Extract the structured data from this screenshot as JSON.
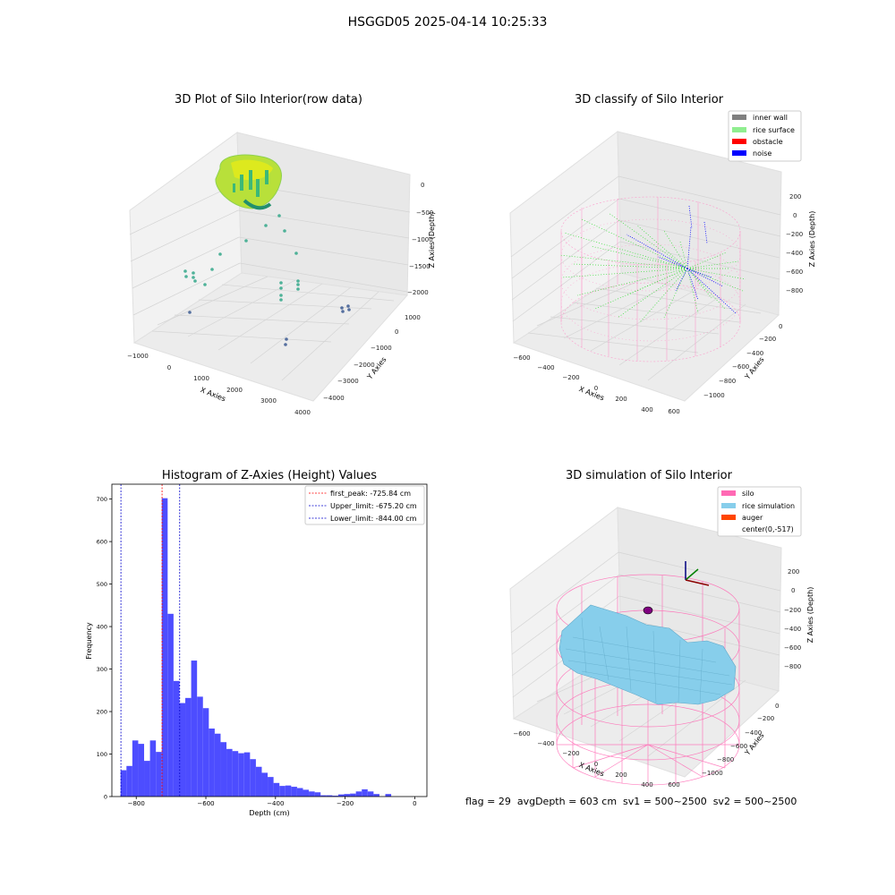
{
  "suptitle": "HSGGD05 2025-04-14 10:25:33",
  "panels": {
    "raw": {
      "title": "3D Plot of Silo Interior(row data)",
      "xlabel": "X Axies",
      "ylabel": "Y Axies",
      "zlabel": "Z Axies (Depth)",
      "xticks": [
        "−1000",
        "0",
        "1000",
        "2000",
        "3000",
        "4000"
      ],
      "yticks": [
        "1000",
        "0",
        "−1000",
        "−2000",
        "−3000",
        "−4000"
      ],
      "zticks": [
        "0",
        "−500",
        "−1000",
        "−1500",
        "−2000"
      ]
    },
    "classify": {
      "title": "3D classify of Silo Interior",
      "xlabel": "X Axies",
      "ylabel": "Y Axies",
      "zlabel": "Z Axies (Depth)",
      "xticks": [
        "−600",
        "−400",
        "−200",
        "0",
        "200",
        "400",
        "600"
      ],
      "yticks": [
        "0",
        "−200",
        "−400",
        "−600",
        "−800",
        "−1000"
      ],
      "zticks": [
        "200",
        "0",
        "−200",
        "−400",
        "−600",
        "−800"
      ],
      "legend": [
        {
          "label": "inner wall",
          "color": "#808080"
        },
        {
          "label": "rice surface",
          "color": "#90ee90"
        },
        {
          "label": "obstacle",
          "color": "#ff0000"
        },
        {
          "label": "noise",
          "color": "#0000ff"
        }
      ]
    },
    "simulation": {
      "title": "3D simulation of Silo Interior",
      "xlabel": "X Axies",
      "ylabel": "Y Axies",
      "zlabel": "Z Axies (Depth)",
      "xticks": [
        "−600",
        "−400",
        "−200",
        "0",
        "200",
        "400",
        "600"
      ],
      "yticks": [
        "0",
        "−200",
        "−400",
        "−600",
        "−800",
        "−1000"
      ],
      "zticks": [
        "200",
        "0",
        "−200",
        "−400",
        "−600",
        "−800"
      ],
      "legend": [
        {
          "label": "silo",
          "color": "#ff69b4"
        },
        {
          "label": "rice simulation",
          "color": "#87ceeb"
        },
        {
          "label": "auger",
          "color": "#ff4500"
        },
        {
          "label": "center(0,-517)",
          "color": ""
        }
      ]
    }
  },
  "chart_data": {
    "type": "bar",
    "title": "Histogram of Z-Axies (Height) Values",
    "xlabel": "Depth (cm)",
    "ylabel": "Frequency",
    "xlim": [
      -870,
      35
    ],
    "ylim": [
      0,
      735
    ],
    "xticks": [
      -800,
      -600,
      -400,
      -200,
      0
    ],
    "xtick_labels": [
      "−800",
      "−600",
      "−400",
      "−200",
      "0"
    ],
    "yticks": [
      0,
      100,
      200,
      300,
      400,
      500,
      600,
      700
    ],
    "bin_start": -845,
    "bin_width": 16.9,
    "values": [
      62,
      72,
      132,
      124,
      84,
      132,
      105,
      702,
      430,
      272,
      220,
      232,
      320,
      235,
      208,
      160,
      148,
      128,
      112,
      107,
      102,
      104,
      88,
      70,
      56,
      46,
      32,
      25,
      26,
      23,
      20,
      16,
      12,
      10,
      3,
      3,
      2,
      5,
      6,
      7,
      12,
      17,
      12,
      6,
      0,
      6
    ],
    "bar_color": "#4d4dff",
    "lines": [
      {
        "label": "first_peak: -725.84 cm",
        "x": -725.84,
        "color": "#ff0000"
      },
      {
        "label": "Upper_limit: -675.20 cm",
        "x": -675.2,
        "color": "#0000cc"
      },
      {
        "label": "Lower_limit: -844.00 cm",
        "x": -844.0,
        "color": "#0000cc"
      }
    ]
  },
  "footer": {
    "text": "flag = 29  avgDepth = 603 cm  sv1 = 500~2500  sv2 = 500~2500"
  }
}
